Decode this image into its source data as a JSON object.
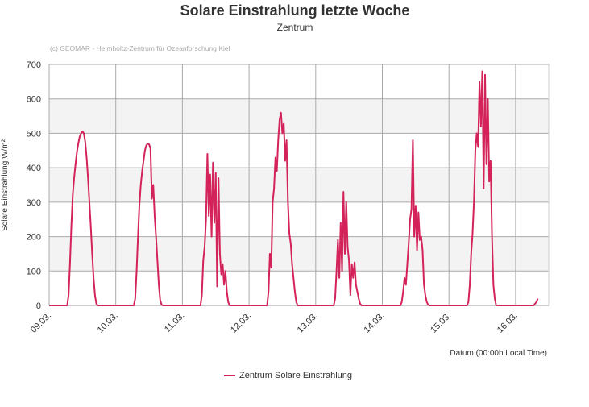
{
  "chart_data": {
    "type": "line",
    "title": "Solare Einstrahlung letzte Woche",
    "subtitle": "Zentrum",
    "credit": "(c) GEOMAR - Helmholtz-Zentrum für Ozeanforschung Kiel",
    "ylabel": "Solare Einstrahlung W/m²",
    "xlabel": "Datum (00:00h Local Time)",
    "ylim": [
      0,
      700
    ],
    "yticks": [
      0,
      100,
      200,
      300,
      400,
      500,
      600,
      700
    ],
    "xticks": [
      "09.03.",
      "10.03.",
      "11.03.",
      "12.03.",
      "13.03.",
      "14.03.",
      "15.03.",
      "16.03."
    ],
    "xlim": [
      "09.03. 00:00",
      "16.03. 12:00"
    ],
    "grid": true,
    "legend_position": "bottom",
    "color": "#d4235a",
    "times": [
      "06:00",
      "06:30",
      "07:00",
      "07:30",
      "08:00",
      "08:30",
      "09:00",
      "09:30",
      "10:00",
      "10:30",
      "11:00",
      "11:30",
      "12:00",
      "12:30",
      "13:00",
      "13:30",
      "14:00",
      "14:30",
      "15:00",
      "15:30",
      "16:00",
      "16:30",
      "17:00",
      "17:30",
      "18:00"
    ],
    "series": [
      {
        "name": "Zentrum Solare Einstrahlung",
        "days": [
          {
            "date": "09.03.",
            "values": [
              0,
              0,
              30,
              120,
              230,
              320,
              370,
              410,
              445,
              470,
              490,
              500,
              505,
              500,
              475,
              430,
              370,
              300,
              230,
              150,
              80,
              30,
              5,
              0,
              0
            ]
          },
          {
            "date": "10.03.",
            "values": [
              0,
              0,
              20,
              100,
              200,
              290,
              350,
              390,
              420,
              450,
              465,
              470,
              468,
              455,
              310,
              350,
              260,
              200,
              130,
              60,
              15,
              2,
              0,
              0,
              0
            ]
          },
          {
            "date": "11.03.",
            "values": [
              0,
              0,
              30,
              130,
              170,
              250,
              440,
              260,
              380,
              200,
              415,
              240,
              385,
              55,
              370,
              150,
              90,
              120,
              60,
              100,
              40,
              10,
              0,
              0,
              0
            ]
          },
          {
            "date": "12.03.",
            "values": [
              0,
              0,
              40,
              150,
              110,
              300,
              340,
              430,
              390,
              480,
              540,
              560,
              500,
              530,
              420,
              480,
              300,
              210,
              180,
              120,
              80,
              40,
              10,
              0,
              0
            ]
          },
          {
            "date": "13.03.",
            "values": [
              0,
              0,
              20,
              100,
              190,
              80,
              240,
              100,
              330,
              150,
              300,
              170,
              130,
              30,
              120,
              80,
              125,
              60,
              40,
              20,
              5,
              0,
              0,
              0,
              0
            ]
          },
          {
            "date": "14.03.",
            "values": [
              0,
              0,
              10,
              40,
              80,
              60,
              120,
              180,
              250,
              280,
              480,
              200,
              290,
              160,
              270,
              190,
              200,
              160,
              60,
              30,
              10,
              2,
              0,
              0,
              0
            ]
          },
          {
            "date": "15.03.",
            "values": [
              0,
              0,
              10,
              60,
              150,
              210,
              300,
              450,
              500,
              460,
              650,
              520,
              680,
              340,
              670,
              410,
              600,
              360,
              420,
              200,
              60,
              20,
              0,
              0,
              0
            ]
          },
          {
            "date": "16.03.",
            "values": [
              0,
              0,
              5,
              10,
              20
            ]
          }
        ]
      }
    ]
  }
}
